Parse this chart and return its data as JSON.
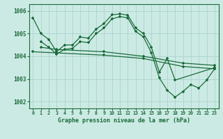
{
  "bg_color": "#cceae4",
  "grid_color": "#aad4cc",
  "line_color": "#1a6b3a",
  "xlabel": "Graphe pression niveau de la mer (hPa)",
  "ylim": [
    1001.7,
    1006.3
  ],
  "xlim": [
    -0.5,
    23.5
  ],
  "yticks": [
    1002,
    1003,
    1004,
    1005,
    1006
  ],
  "xticks": [
    0,
    1,
    2,
    3,
    4,
    5,
    6,
    7,
    8,
    9,
    10,
    11,
    12,
    13,
    14,
    15,
    16,
    17,
    18,
    19,
    20,
    21,
    22,
    23
  ],
  "series": [
    {
      "x": [
        0,
        1,
        2,
        3,
        4,
        5,
        6,
        7,
        8,
        9,
        10,
        11,
        12,
        13,
        14,
        15,
        16,
        17,
        18,
        23
      ],
      "y": [
        1005.7,
        1005.0,
        1004.75,
        1004.2,
        1004.5,
        1004.5,
        1004.85,
        1004.8,
        1005.2,
        1005.45,
        1005.83,
        1005.87,
        1005.82,
        1005.25,
        1005.0,
        1004.4,
        1003.3,
        1003.9,
        1002.95,
        1003.5
      ]
    },
    {
      "x": [
        0,
        3,
        9,
        14,
        19,
        23
      ],
      "y": [
        1004.2,
        1004.15,
        1004.05,
        1003.9,
        1003.55,
        1003.45
      ]
    },
    {
      "x": [
        1,
        3,
        9,
        14,
        19,
        23
      ],
      "y": [
        1004.4,
        1004.3,
        1004.2,
        1004.0,
        1003.7,
        1003.6
      ]
    },
    {
      "x": [
        1,
        2,
        3,
        4,
        5,
        6,
        7,
        8,
        9,
        10,
        11,
        12,
        13,
        14,
        15,
        16,
        17,
        18,
        19,
        20,
        21,
        22,
        23
      ],
      "y": [
        1004.65,
        1004.4,
        1004.1,
        1004.3,
        1004.35,
        1004.65,
        1004.6,
        1005.0,
        1005.25,
        1005.65,
        1005.75,
        1005.7,
        1005.1,
        1004.85,
        1004.15,
        1003.05,
        1002.5,
        1002.2,
        1002.45,
        1002.75,
        1002.6,
        1002.95,
        1003.45
      ]
    }
  ]
}
